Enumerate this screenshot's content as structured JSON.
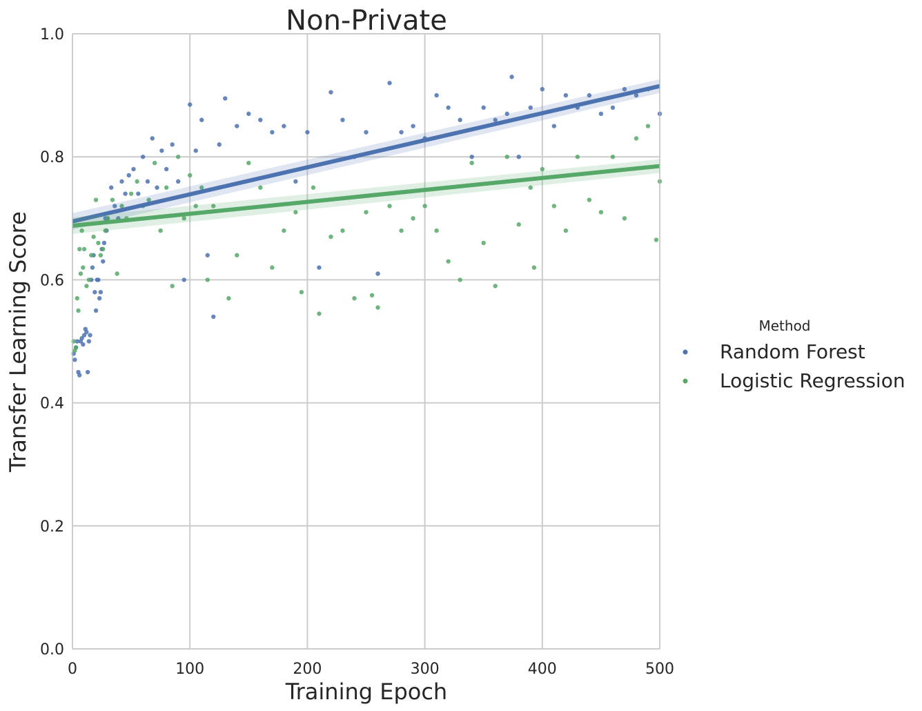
{
  "chart_data": {
    "type": "scatter",
    "title": "Non-Private",
    "xlabel": "Training Epoch",
    "ylabel": "Transfer Learning Score",
    "xlim": [
      0,
      500
    ],
    "ylim": [
      0.0,
      1.0
    ],
    "xticks": [
      "0",
      "100",
      "200",
      "300",
      "400",
      "500"
    ],
    "yticks": [
      "0.0",
      "0.2",
      "0.4",
      "0.6",
      "0.8",
      "1.0"
    ],
    "grid": true,
    "legend": {
      "title": "Method",
      "placement": "right"
    },
    "series": [
      {
        "name": "Random Forest",
        "color": "#4c72b0",
        "regression": {
          "start": [
            0,
            0.695
          ],
          "end": [
            500,
            0.915
          ]
        },
        "x": [
          1,
          2,
          3,
          4,
          5,
          6,
          7,
          8,
          9,
          10,
          11,
          12,
          13,
          14,
          15,
          16,
          17,
          18,
          19,
          20,
          21,
          22,
          23,
          24,
          25,
          26,
          27,
          28,
          29,
          30,
          33,
          36,
          39,
          42,
          45,
          48,
          52,
          56,
          60,
          64,
          68,
          72,
          76,
          80,
          85,
          90,
          95,
          100,
          105,
          110,
          115,
          120,
          125,
          130,
          140,
          150,
          160,
          170,
          180,
          190,
          200,
          210,
          220,
          230,
          240,
          250,
          260,
          270,
          280,
          290,
          300,
          310,
          320,
          330,
          340,
          350,
          360,
          370,
          374,
          380,
          390,
          400,
          410,
          420,
          430,
          440,
          450,
          460,
          470,
          480,
          490,
          500
        ],
        "values": [
          0.48,
          0.47,
          0.49,
          0.5,
          0.45,
          0.445,
          0.5,
          0.505,
          0.495,
          0.51,
          0.52,
          0.515,
          0.45,
          0.5,
          0.51,
          0.6,
          0.62,
          0.64,
          0.58,
          0.55,
          0.6,
          0.6,
          0.57,
          0.58,
          0.65,
          0.63,
          0.66,
          0.7,
          0.68,
          0.7,
          0.75,
          0.72,
          0.7,
          0.76,
          0.74,
          0.77,
          0.78,
          0.74,
          0.8,
          0.76,
          0.83,
          0.75,
          0.81,
          0.78,
          0.82,
          0.76,
          0.6,
          0.885,
          0.81,
          0.86,
          0.64,
          0.54,
          0.82,
          0.895,
          0.85,
          0.87,
          0.86,
          0.84,
          0.85,
          0.76,
          0.84,
          0.62,
          0.905,
          0.86,
          0.8,
          0.84,
          0.61,
          0.92,
          0.84,
          0.85,
          0.83,
          0.9,
          0.88,
          0.86,
          0.8,
          0.88,
          0.86,
          0.87,
          0.93,
          0.8,
          0.88,
          0.91,
          0.85,
          0.9,
          0.88,
          0.9,
          0.87,
          0.88,
          0.91,
          0.9,
          0.91,
          0.87
        ]
      },
      {
        "name": "Logistic Regression",
        "color": "#55a868",
        "regression": {
          "start": [
            0,
            0.688
          ],
          "end": [
            500,
            0.785
          ]
        },
        "x": [
          1,
          2,
          3,
          4,
          5,
          6,
          7,
          8,
          9,
          10,
          12,
          14,
          16,
          18,
          20,
          22,
          24,
          26,
          28,
          30,
          34,
          38,
          42,
          46,
          50,
          55,
          60,
          65,
          70,
          75,
          80,
          85,
          90,
          95,
          100,
          105,
          110,
          115,
          120,
          125,
          133,
          140,
          150,
          160,
          170,
          180,
          190,
          195,
          205,
          210,
          220,
          230,
          240,
          250,
          255,
          260,
          270,
          280,
          290,
          300,
          310,
          320,
          330,
          340,
          350,
          360,
          370,
          380,
          390,
          393,
          400,
          410,
          420,
          430,
          440,
          450,
          460,
          470,
          480,
          490,
          497,
          500
        ],
        "values": [
          0.5,
          0.485,
          0.49,
          0.57,
          0.55,
          0.65,
          0.61,
          0.68,
          0.62,
          0.65,
          0.59,
          0.6,
          0.64,
          0.67,
          0.73,
          0.66,
          0.64,
          0.65,
          0.68,
          0.7,
          0.73,
          0.61,
          0.72,
          0.7,
          0.74,
          0.76,
          0.72,
          0.73,
          0.79,
          0.68,
          0.75,
          0.59,
          0.8,
          0.7,
          0.77,
          0.72,
          0.75,
          0.6,
          0.72,
          0.75,
          0.57,
          0.64,
          0.79,
          0.75,
          0.62,
          0.68,
          0.71,
          0.58,
          0.75,
          0.545,
          0.67,
          0.68,
          0.57,
          0.71,
          0.575,
          0.555,
          0.72,
          0.68,
          0.7,
          0.72,
          0.68,
          0.63,
          0.6,
          0.79,
          0.66,
          0.59,
          0.8,
          0.69,
          0.75,
          0.62,
          0.78,
          0.72,
          0.68,
          0.8,
          0.73,
          0.71,
          0.8,
          0.7,
          0.83,
          0.85,
          0.665,
          0.76
        ]
      }
    ]
  }
}
